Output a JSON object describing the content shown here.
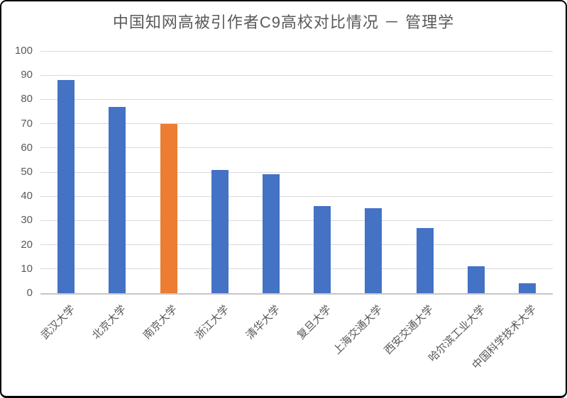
{
  "chart_data": {
    "type": "bar",
    "title": "中国知网高被引作者C9高校对比情况 － 管理学",
    "categories": [
      "武汉大学",
      "北京大学",
      "南京大学",
      "浙江大学",
      "清华大学",
      "复旦大学",
      "上海交通大学",
      "西安交通大学",
      "哈尔滨工业大学",
      "中国科学技术大学"
    ],
    "values": [
      88,
      77,
      70,
      51,
      49,
      36,
      35,
      27,
      11,
      4
    ],
    "highlight_index": 2,
    "xlabel": "",
    "ylabel": "",
    "ylim": [
      0,
      100
    ],
    "ytick_step": 10,
    "ytick_labels": [
      "0",
      "10",
      "20",
      "30",
      "40",
      "50",
      "60",
      "70",
      "80",
      "90",
      "100"
    ],
    "grid": true,
    "legend_position": "none",
    "colors": {
      "bar": "#4472C4",
      "highlight_bar": "#ED7D31",
      "gridline": "#D9D9D9",
      "axis_line": "#C6C6C6",
      "axis_text": "#595959",
      "title_text": "#595959",
      "background": "#FFFFFF",
      "border": "#000000"
    }
  }
}
